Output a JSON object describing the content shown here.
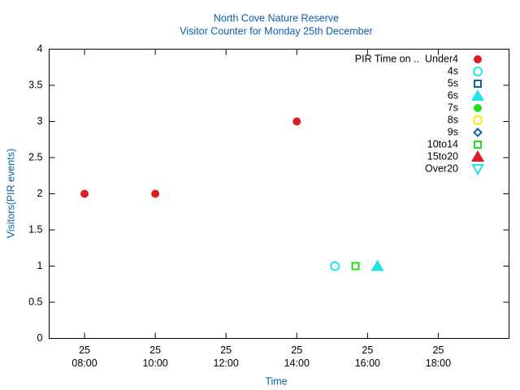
{
  "chart_data": {
    "type": "scatter",
    "title": "North Cove Nature Reserve",
    "subtitle": "Visitor Counter for Monday 25th December",
    "x_label": "Time",
    "y_label": "Visitors(PIR events)",
    "legend_title": "PIR Time on ..",
    "legend": "top-right",
    "grid": false,
    "xlim": [
      7,
      20
    ],
    "xticks": [
      {
        "value": 8,
        "label": [
          "25",
          "08:00"
        ]
      },
      {
        "value": 10,
        "label": [
          "25",
          "10:00"
        ]
      },
      {
        "value": 12,
        "label": [
          "25",
          "12:00"
        ]
      },
      {
        "value": 14,
        "label": [
          "25",
          "14:00"
        ]
      },
      {
        "value": 16,
        "label": [
          "25",
          "16:00"
        ]
      },
      {
        "value": 18,
        "label": [
          "25",
          "18:00"
        ]
      }
    ],
    "ylim": [
      0,
      4
    ],
    "yticks": [
      0,
      0.5,
      1,
      1.5,
      2,
      2.5,
      3,
      3.5,
      4
    ],
    "series": [
      {
        "name": "Under4",
        "color": "#dd1d26",
        "marker": "circle-filled",
        "x": [
          8,
          10,
          14
        ],
        "values": [
          2,
          2,
          3
        ]
      },
      {
        "name": "4s",
        "color": "#1fe3ee",
        "marker": "circle-open",
        "x": [
          15.08
        ],
        "values": [
          1
        ]
      },
      {
        "name": "5s",
        "color": "#0b5ea8",
        "marker": "square-open",
        "x": [],
        "values": []
      },
      {
        "name": "6s",
        "color": "#1fe3ee",
        "marker": "triangle-filled",
        "x": [
          16.28
        ],
        "values": [
          1
        ]
      },
      {
        "name": "7s",
        "color": "#1ee21e",
        "marker": "circle-filled",
        "x": [],
        "values": []
      },
      {
        "name": "8s",
        "color": "#f2ee0a",
        "marker": "circle-open",
        "x": [],
        "values": []
      },
      {
        "name": "9s",
        "color": "#0b5ea8",
        "marker": "diamond-open",
        "x": [],
        "values": []
      },
      {
        "name": "10to14",
        "color": "#1ee21e",
        "marker": "square-open",
        "x": [
          15.66
        ],
        "values": [
          1
        ]
      },
      {
        "name": "15to20",
        "color": "#dd1d26",
        "marker": "triangle-filled",
        "x": [],
        "values": []
      },
      {
        "name": "Over20",
        "color": "#1fe3ee",
        "marker": "triangle-down-open",
        "x": [],
        "values": []
      }
    ]
  }
}
